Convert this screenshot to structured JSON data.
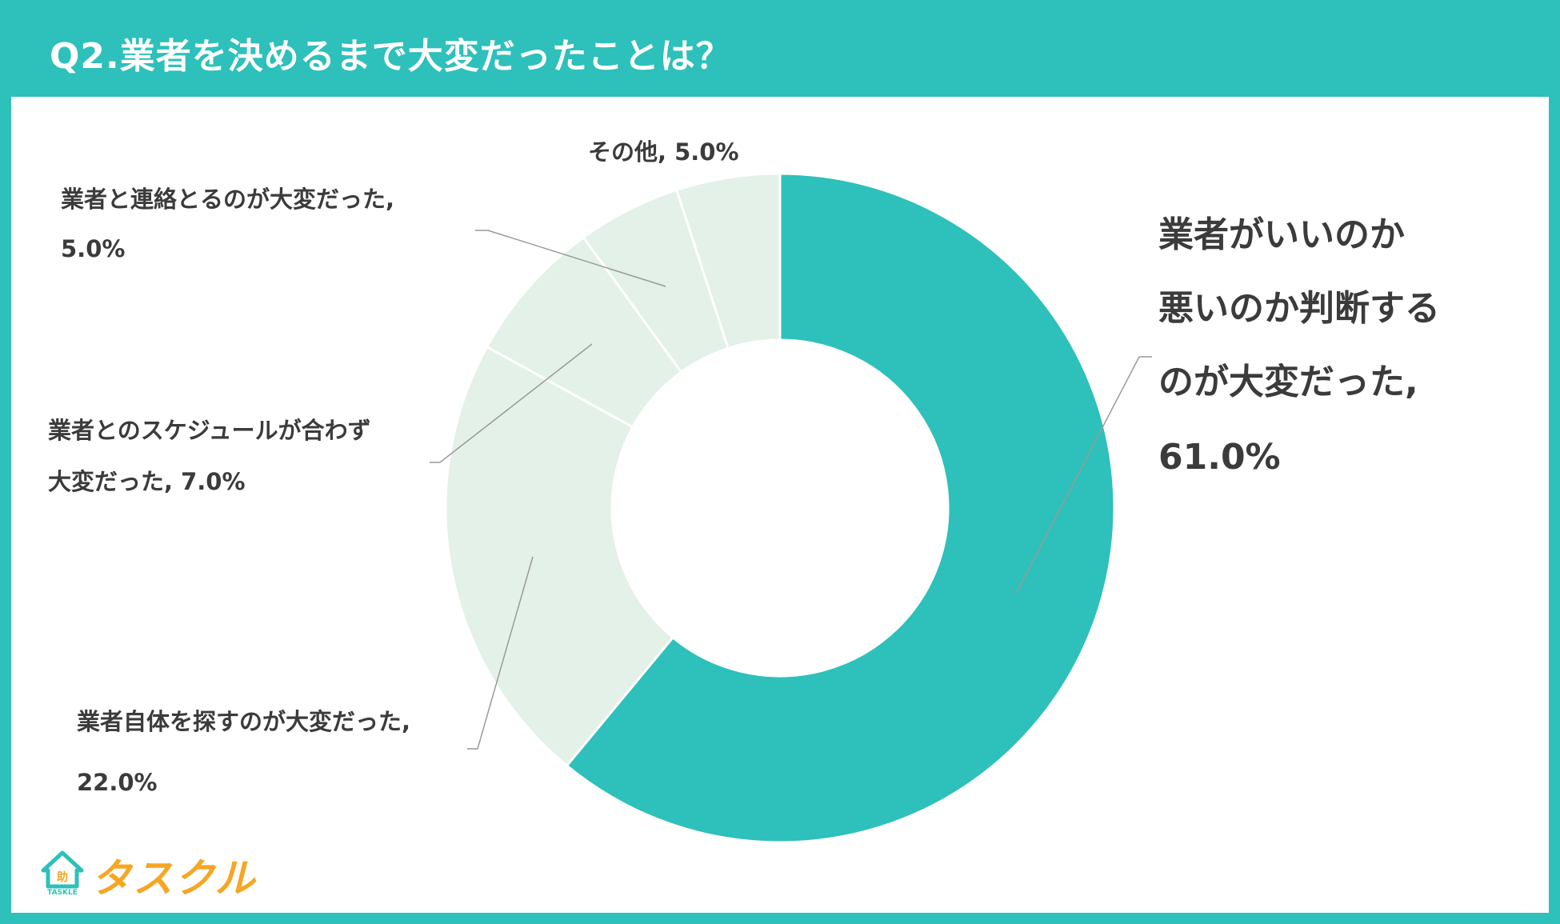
{
  "header": {
    "title": "Q2.業者を決めるまで大変だったことは？"
  },
  "logo": {
    "text": "タスクル",
    "sub": "TASKLE",
    "badge": "助"
  },
  "colors": {
    "accent": "#2ec0bb",
    "minor_slice": "#e3f1e8",
    "leader_line": "#9a9a9a",
    "label_text": "#3b3b3b",
    "logo_orange": "#f5a623"
  },
  "chart_data": {
    "type": "pie",
    "donut": true,
    "title": "Q2.業者を決めるまで大変だったことは？",
    "slices": [
      {
        "label": "業者がいいのか悪いのか判断するのが大変だった",
        "value": 61.0,
        "label_lines": [
          "業者がいいのか",
          "悪いのか判断する",
          "のが大変だった,",
          "61.0%"
        ]
      },
      {
        "label": "業者自体を探すのが大変だった",
        "value": 22.0,
        "label_lines": [
          "業者自体を探すのが大変だった,",
          "22.0%"
        ]
      },
      {
        "label": "業者とのスケジュールが合わず大変だった",
        "value": 7.0,
        "label_lines": [
          "業者とのスケジュールが合わず",
          "大変だった, 7.0%"
        ]
      },
      {
        "label": "業者と連絡とるのが大変だった",
        "value": 5.0,
        "label_lines": [
          "業者と連絡とるのが大変だった,",
          "5.0%"
        ]
      },
      {
        "label": "その他",
        "value": 5.0,
        "label_lines": [
          "その他, 5.0%"
        ]
      }
    ]
  }
}
